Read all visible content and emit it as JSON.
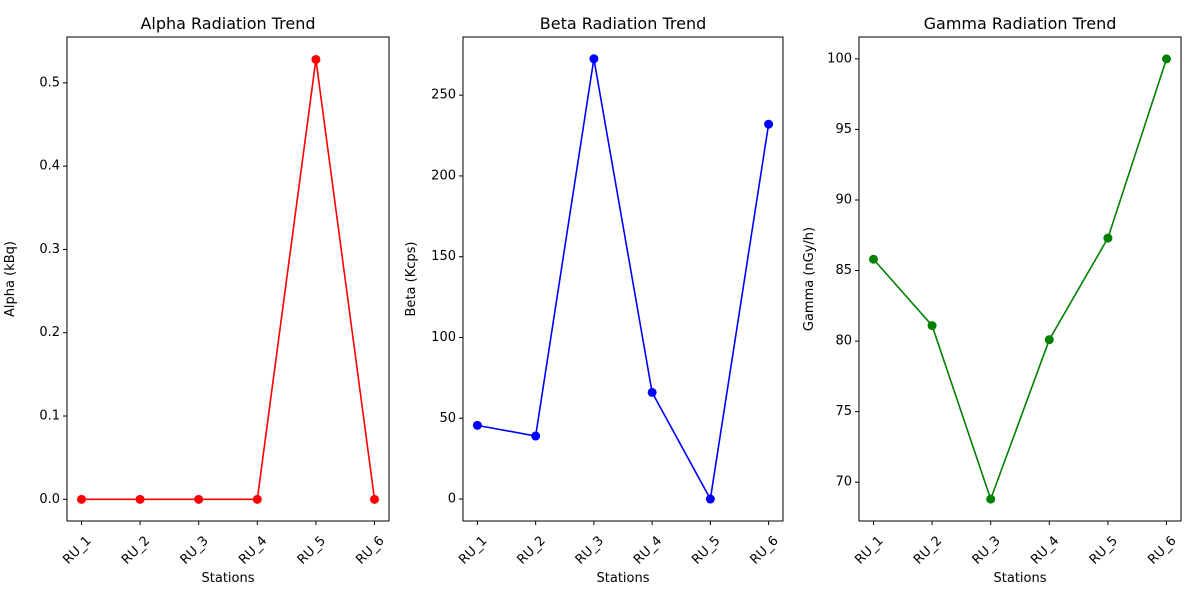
{
  "chart_data": [
    {
      "type": "line",
      "title": "Alpha Radiation Trend",
      "xlabel": "Stations",
      "ylabel": "Alpha (kBq)",
      "categories": [
        "RU_1",
        "RU_2",
        "RU_3",
        "RU_4",
        "RU_5",
        "RU_6"
      ],
      "values": [
        0,
        0,
        0,
        0,
        0.528,
        0
      ],
      "color": "#ff0000",
      "ylim": [
        -0.026,
        0.555
      ],
      "yticks": [
        0.0,
        0.1,
        0.2,
        0.3,
        0.4,
        0.5
      ],
      "ytick_labels": [
        "0.0",
        "0.1",
        "0.2",
        "0.3",
        "0.4",
        "0.5"
      ],
      "grid": false,
      "marker": "circle"
    },
    {
      "type": "line",
      "title": "Beta Radiation Trend",
      "xlabel": "Stations",
      "ylabel": "Beta (Kcps)",
      "categories": [
        "RU_1",
        "RU_2",
        "RU_3",
        "RU_4",
        "RU_5",
        "RU_6"
      ],
      "values": [
        45.6,
        39.0,
        272.5,
        66.0,
        0,
        232.0
      ],
      "color": "#0000ff",
      "ylim": [
        -13.6,
        286.0
      ],
      "yticks": [
        0,
        50,
        100,
        150,
        200,
        250
      ],
      "ytick_labels": [
        "0",
        "50",
        "100",
        "150",
        "200",
        "250"
      ],
      "grid": false,
      "marker": "circle"
    },
    {
      "type": "line",
      "title": "Gamma Radiation Trend",
      "xlabel": "Stations",
      "ylabel": "Gamma (nGy/h)",
      "categories": [
        "RU_1",
        "RU_2",
        "RU_3",
        "RU_4",
        "RU_5",
        "RU_6"
      ],
      "values": [
        85.8,
        81.1,
        68.8,
        80.1,
        87.3,
        100.0
      ],
      "color": "#008000",
      "ylim": [
        67.25,
        101.55
      ],
      "yticks": [
        70,
        75,
        80,
        85,
        90,
        95,
        100
      ],
      "ytick_labels": [
        "70",
        "75",
        "80",
        "85",
        "90",
        "95",
        "100"
      ],
      "grid": false,
      "marker": "circle"
    }
  ]
}
